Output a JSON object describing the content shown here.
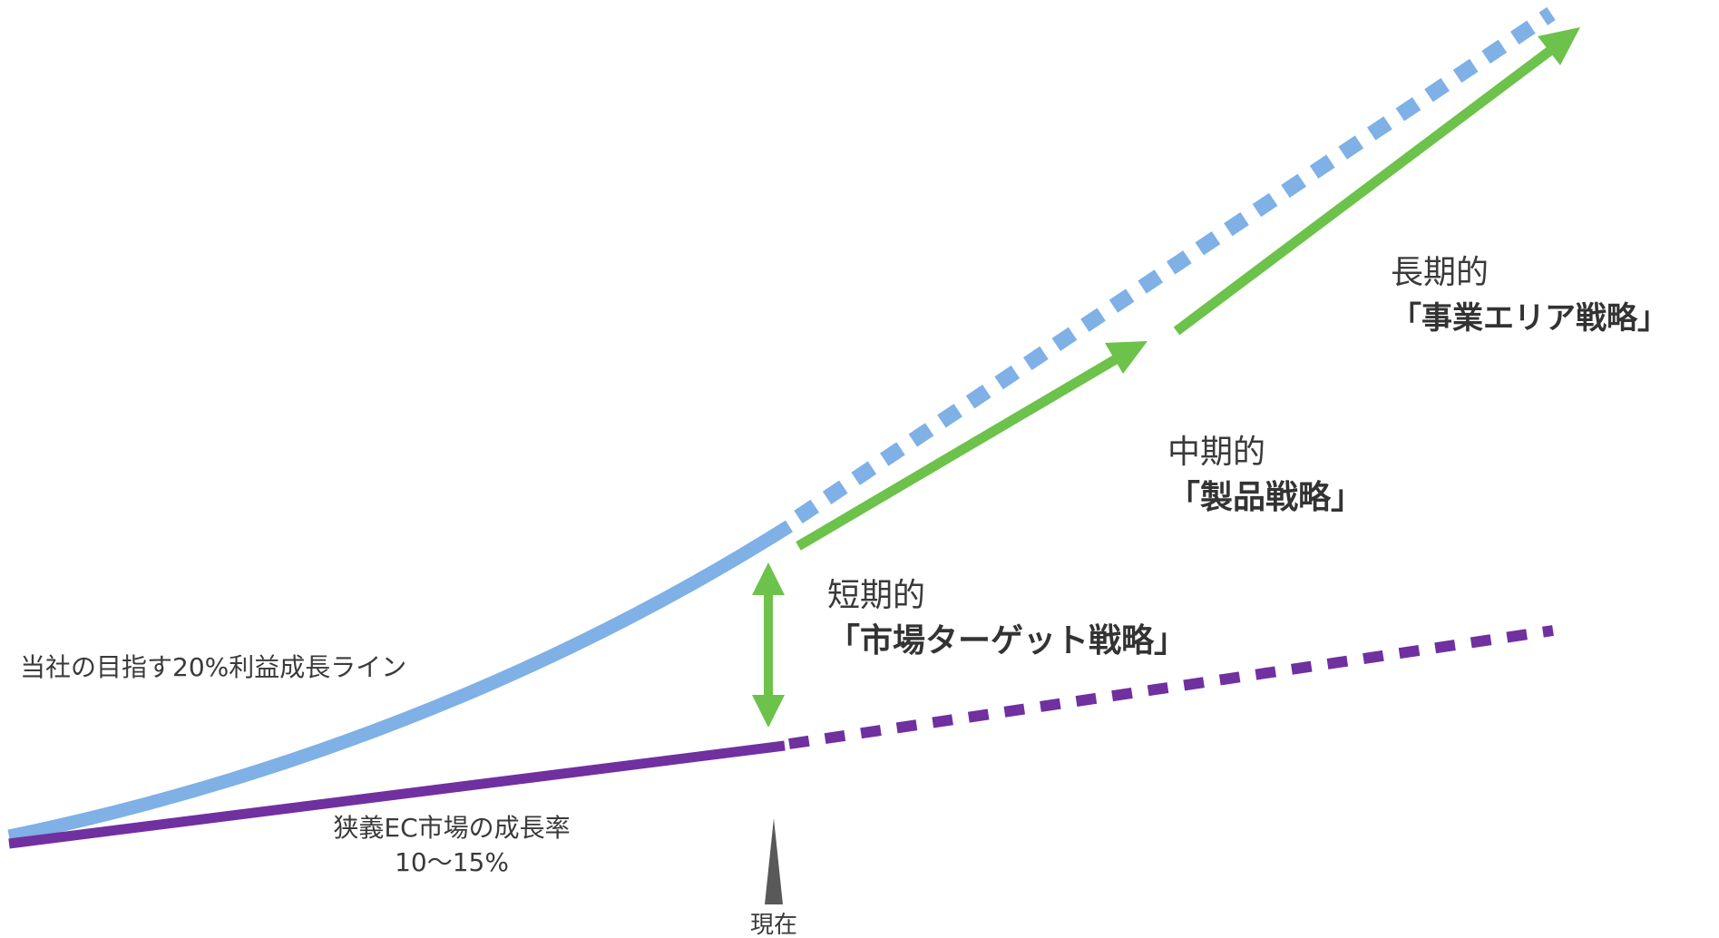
{
  "labels": {
    "company_line": "当社の目指す20%利益成長ライン",
    "market_line_1": "狭義EC市場の成長率",
    "market_line_2": "10〜15%",
    "now": "現在",
    "short_term_period": "短期的",
    "short_term_strategy": "「市場ターゲット戦略」",
    "mid_term_period": "中期的",
    "mid_term_strategy": "「製品戦略」",
    "long_term_period": "長期的",
    "long_term_strategy": "「事業エリア戦略」"
  },
  "colors": {
    "company_line": "#7fb0e6",
    "market_line": "#7030a0",
    "strategy_arrow": "#6cc24a",
    "now_marker": "#595959",
    "text": "#3a3a3a"
  }
}
